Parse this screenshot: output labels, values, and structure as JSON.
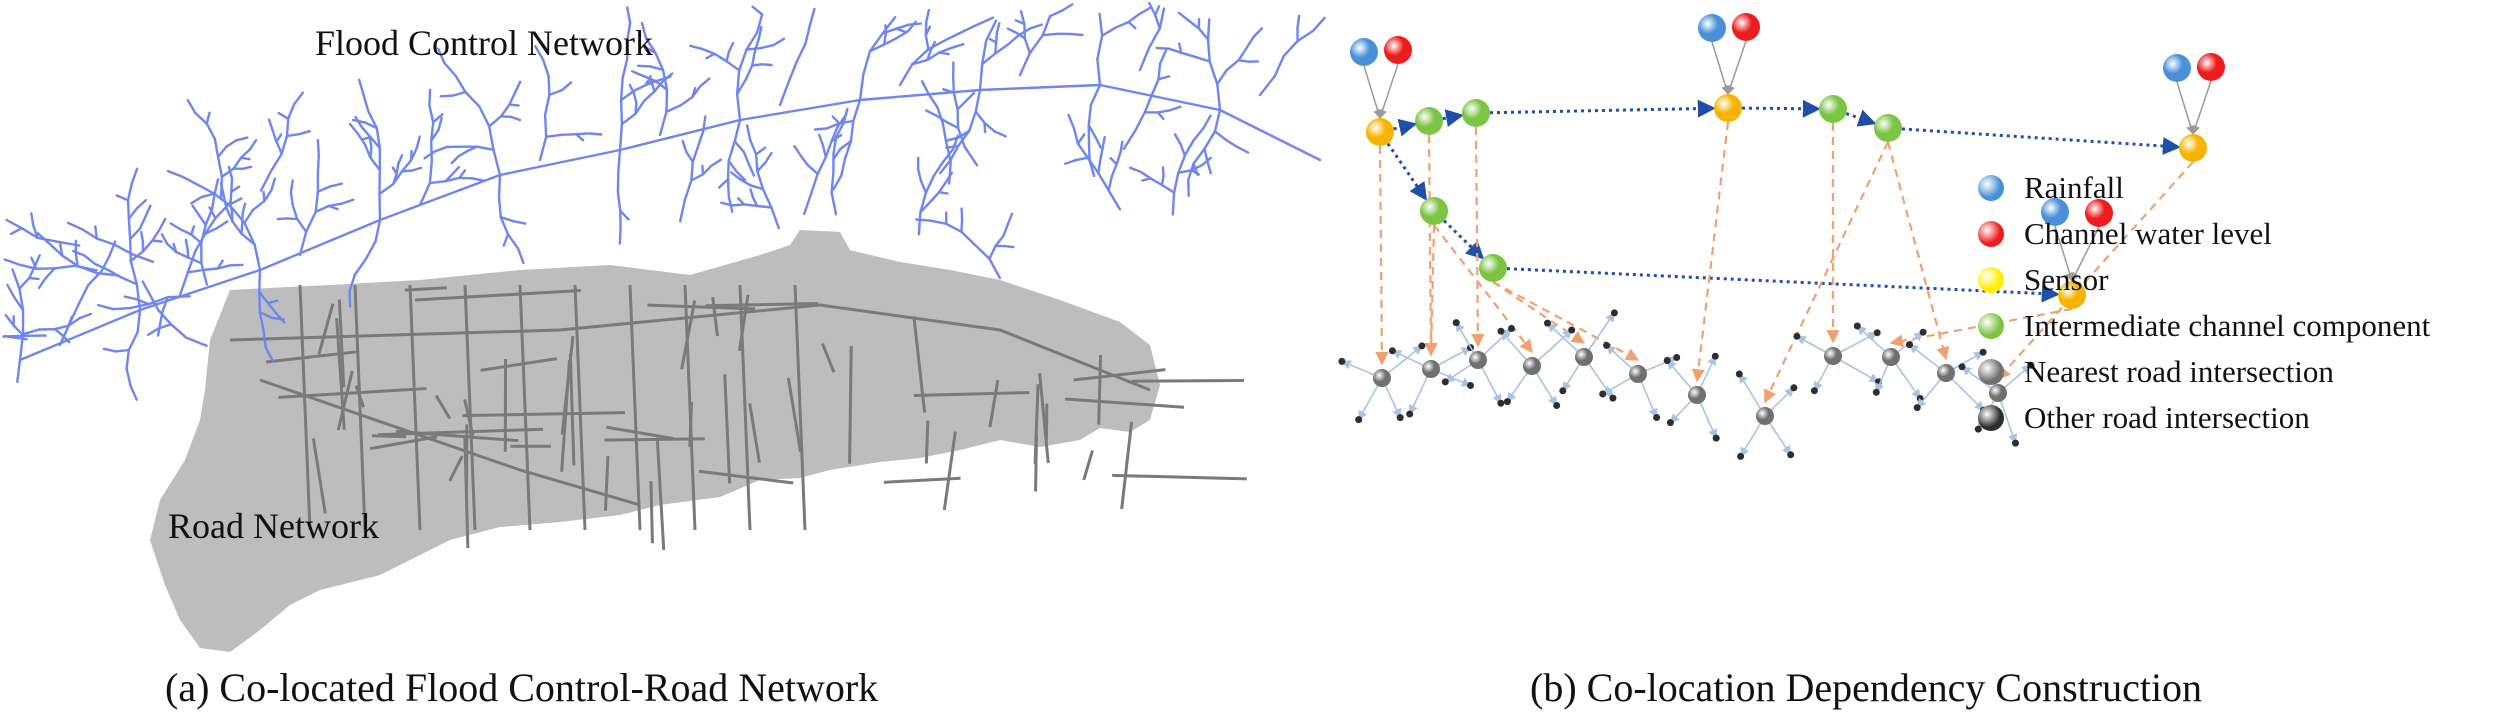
{
  "panel_a": {
    "flood_label": "Flood Control Network",
    "road_label": "Road Network",
    "caption": "(a)  Co-located Flood Control-Road Network",
    "colors": {
      "river": "#6f86f0",
      "road_area": "#bdbdbd",
      "road_line": "#7a7a7a"
    }
  },
  "panel_b": {
    "caption": "(b)  Co-location Dependency Construction",
    "legend": [
      {
        "label": "Rainfall",
        "color": "#4a90d9"
      },
      {
        "label": "Channel water level",
        "color": "#ee1c1c"
      },
      {
        "label": "Sensor",
        "color": "#ffee00"
      },
      {
        "label": "Intermediate channel component",
        "color": "#7cc444"
      },
      {
        "label": "Nearest road intersection",
        "color": "#707070"
      },
      {
        "label": "Other road intersection",
        "color": "#2e2e2e"
      }
    ],
    "colors": {
      "rainfall": "#4a90d9",
      "water_level": "#ee1c1c",
      "sensor": "#f6b400",
      "intermediate": "#7cc444",
      "nearest": "#707070",
      "other": "#2e2e2e",
      "channel_edge": "#1f4fa8",
      "dependency_edge": "#f2a070",
      "road_edge": "#a7c4e5"
    }
  }
}
